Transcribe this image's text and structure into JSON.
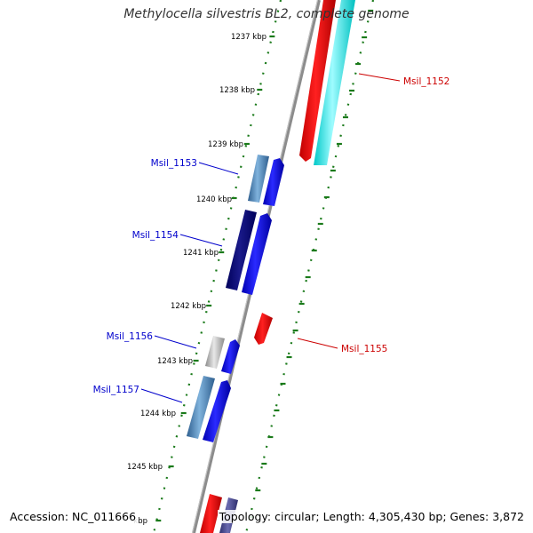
{
  "title": "Methylocella silvestris BL2, complete genome",
  "footer": {
    "accession": "Accession: NC_011666",
    "topology": "Topology: circular; Length: 4,305,430 bp; Genes: 3,872"
  },
  "colors": {
    "backbone": "#8c8c8c",
    "tick": "#1a7a1a",
    "label_forward": "#0000cc",
    "label_reverse": "#cc0000"
  },
  "kbp_labels": [
    "1237 kbp",
    "1238 kbp",
    "1239 kbp",
    "1240 kbp",
    "1241 kbp",
    "1242 kbp",
    "1243 kbp",
    "1244 kbp",
    "1245 kbp",
    "kbp"
  ],
  "genes": [
    {
      "label": "Msil_1152",
      "strand": "reverse"
    },
    {
      "label": "Msil_1153",
      "strand": "forward"
    },
    {
      "label": "Msil_1154",
      "strand": "forward"
    },
    {
      "label": "Msil_1155",
      "strand": "reverse"
    },
    {
      "label": "Msil_1156",
      "strand": "forward"
    },
    {
      "label": "Msil_1157",
      "strand": "forward"
    }
  ]
}
